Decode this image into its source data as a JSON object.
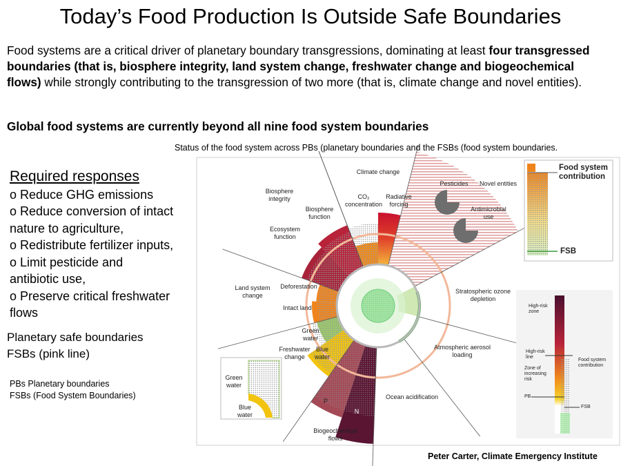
{
  "title": "Today’s Food Production Is Outside  Safe Boundaries",
  "intro": [
    "Food systems are a critical driver of planetary boundary transgressions, dominating at least ",
    "four transgressed boundaries (that is, biosphere integrity, land system change, freshwater change and biogeochemical flows)",
    " while strongly contributing to the transgression of two more (that is, climate change and novel entities)."
  ],
  "subheading": "Global food systems are currently beyond all nine food system boundaries",
  "figure_caption": "Status of the food system across PBs (planetary boundaries and the FSBs (food system boundaries.",
  "responses": {
    "heading": "Required responses",
    "items": [
      "o Reduce GHG emissions",
      "o Reduce conversion of intact nature to agriculture,",
      "o Redistribute fertilizer inputs,",
      "o Limit pesticide and antibiotic use,",
      "o Preserve critical freshwater flows"
    ]
  },
  "notes": [
    "Planetary safe boundaries",
    "FSBs (pink line)"
  ],
  "abbreviations": [
    "PBs Planetary boundaries",
    "FSBs (Food System Boundaries)"
  ],
  "diagram": {
    "labels": {
      "climate_change": "Climate change",
      "co2": "CO₂ concentration",
      "radiative": "Radiative forcing",
      "pesticides": "Pesticides",
      "novel": "Novel entities",
      "antimicrobial": "Antimicrobial use",
      "biosphere_integrity": "Biosphere integrity",
      "biosphere_function": "Biosphere function",
      "ecosystem_function": "Ecosystem function",
      "ozone": "Stratospheric ozone depletion",
      "land": "Land system change",
      "deforestation": "Deforestation",
      "intact": "Intact land",
      "green_water": "Green water",
      "freshwater": "Freshwater change",
      "blue_water": "Blue water",
      "aerosol": "Atmospheric aerosol loading",
      "ocean": "Ocean acidification",
      "p": "P",
      "n": "N",
      "biogeochemical": "Biogeochemical flows"
    },
    "inset": {
      "green_water": "Green water",
      "blue_water": "Blue water"
    },
    "legend_top": {
      "contribution": "Food system contribution",
      "fsb": "FSB"
    },
    "legend_side": {
      "high_risk_zone": "High-risk zone",
      "high_risk_line": "High-risk line",
      "contribution": "Food system contribution",
      "increasing": "Zone of increasing risk",
      "pb": "PB",
      "fsb": "FSB"
    }
  },
  "credit": "Peter Carter, Climate Emergency Institute"
}
